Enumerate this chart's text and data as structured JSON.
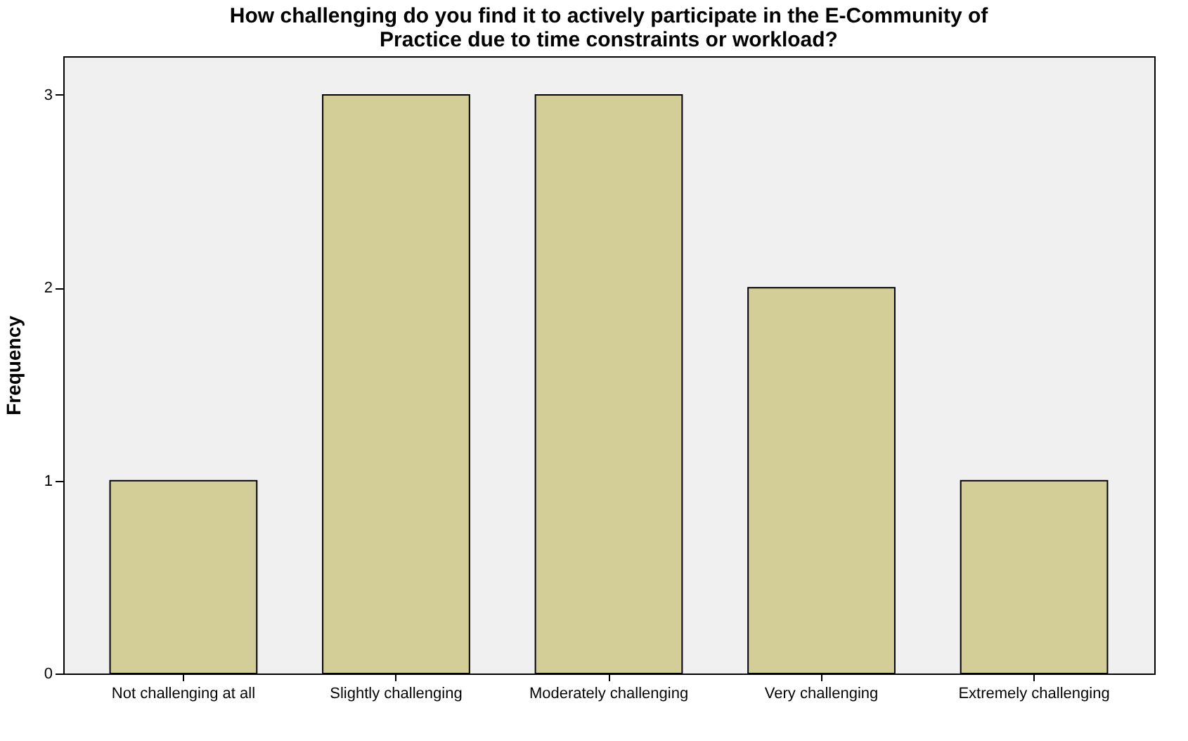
{
  "chart_data": {
    "type": "bar",
    "title": "How challenging do you find it to actively participate in the E-Community of Practice due to time constraints or workload?",
    "ylabel": "Frequency",
    "categories": [
      "Not challenging at all",
      "Slightly challenging",
      "Moderately challenging",
      "Very challenging",
      "Extremely challenging"
    ],
    "values": [
      1,
      3,
      3,
      2,
      1
    ],
    "color": "#d3ce97",
    "ylim": [
      0,
      3.2
    ],
    "yticks": [
      0,
      1,
      2,
      3
    ],
    "grid": false
  }
}
